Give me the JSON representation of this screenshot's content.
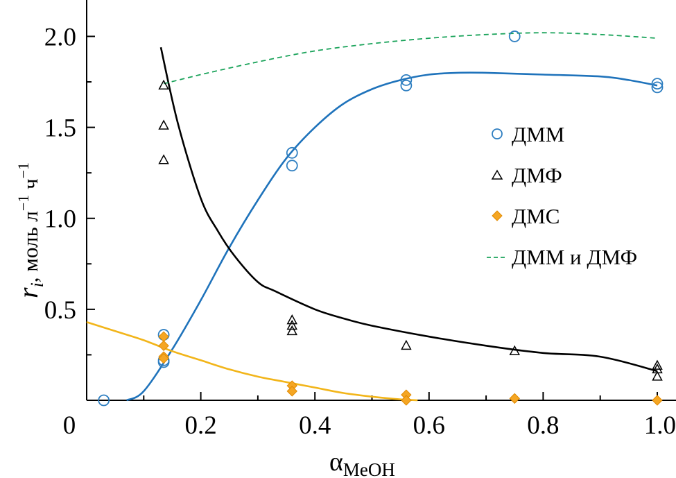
{
  "chart_data": {
    "type": "scatter",
    "xlabel": "α",
    "xlabel_sub": "MeOH",
    "ylabel": "r",
    "ylabel_sub": "i",
    "ylabel_rest": ", моль л",
    "ylabel_exp1": "−1",
    "ylabel_mid": " ч",
    "ylabel_exp2": "−1",
    "xlim": [
      0,
      1.0
    ],
    "ylim": [
      0,
      2.2
    ],
    "x_ticks": [
      0,
      0.2,
      0.4,
      0.6,
      0.8,
      1.0
    ],
    "x_tick_labels": [
      "0",
      "0.2",
      "0.4",
      "0.6",
      "0.8",
      "1.0"
    ],
    "y_ticks": [
      0.5,
      1.0,
      1.5,
      2.0
    ],
    "y_tick_labels": [
      "0.5",
      "1.0",
      "1.5",
      "2.0"
    ],
    "series": [
      {
        "name": "ДММ",
        "marker": "circle",
        "color": "#2f7fc1",
        "points": [
          [
            0.03,
            0.0
          ],
          [
            0.135,
            0.36
          ],
          [
            0.135,
            0.22
          ],
          [
            0.135,
            0.21
          ],
          [
            0.36,
            1.36
          ],
          [
            0.36,
            1.29
          ],
          [
            0.56,
            1.76
          ],
          [
            0.56,
            1.73
          ],
          [
            0.75,
            2.0
          ],
          [
            1.0,
            1.74
          ],
          [
            1.0,
            1.72
          ]
        ]
      },
      {
        "name": "ДМФ",
        "marker": "triangle",
        "color": "#000000",
        "points": [
          [
            0.135,
            1.73
          ],
          [
            0.135,
            1.51
          ],
          [
            0.135,
            1.32
          ],
          [
            0.36,
            0.44
          ],
          [
            0.36,
            0.41
          ],
          [
            0.36,
            0.38
          ],
          [
            0.56,
            0.3
          ],
          [
            0.75,
            0.27
          ],
          [
            1.0,
            0.19
          ],
          [
            1.0,
            0.17
          ],
          [
            1.0,
            0.13
          ]
        ]
      },
      {
        "name": "ДМС",
        "marker": "diamond",
        "color": "#f5a623",
        "points": [
          [
            0.135,
            0.35
          ],
          [
            0.135,
            0.3
          ],
          [
            0.135,
            0.24
          ],
          [
            0.135,
            0.23
          ],
          [
            0.36,
            0.08
          ],
          [
            0.36,
            0.05
          ],
          [
            0.56,
            0.03
          ],
          [
            0.56,
            0.0
          ],
          [
            0.75,
            0.01
          ],
          [
            1.0,
            0.0
          ]
        ]
      },
      {
        "name": "ДММ и ДМФ",
        "marker": "dashed-line",
        "color": "#1aa35a"
      }
    ],
    "fit_curves": [
      {
        "name": "ДММ fit",
        "color": "#1f73bb",
        "points": [
          [
            0.07,
            0.0
          ],
          [
            0.1,
            0.05
          ],
          [
            0.15,
            0.28
          ],
          [
            0.2,
            0.55
          ],
          [
            0.25,
            0.84
          ],
          [
            0.3,
            1.1
          ],
          [
            0.35,
            1.33
          ],
          [
            0.4,
            1.5
          ],
          [
            0.45,
            1.63
          ],
          [
            0.5,
            1.71
          ],
          [
            0.55,
            1.76
          ],
          [
            0.6,
            1.79
          ],
          [
            0.65,
            1.8
          ],
          [
            0.7,
            1.8
          ],
          [
            0.8,
            1.79
          ],
          [
            0.9,
            1.78
          ],
          [
            0.95,
            1.76
          ],
          [
            1.0,
            1.73
          ]
        ]
      },
      {
        "name": "ДМФ fit",
        "color": "#000000",
        "points": [
          [
            0.13,
            1.94
          ],
          [
            0.16,
            1.52
          ],
          [
            0.2,
            1.11
          ],
          [
            0.23,
            0.93
          ],
          [
            0.26,
            0.79
          ],
          [
            0.3,
            0.65
          ],
          [
            0.33,
            0.6
          ],
          [
            0.4,
            0.5
          ],
          [
            0.45,
            0.45
          ],
          [
            0.5,
            0.41
          ],
          [
            0.6,
            0.35
          ],
          [
            0.7,
            0.3
          ],
          [
            0.8,
            0.26
          ],
          [
            0.9,
            0.24
          ],
          [
            1.0,
            0.16
          ]
        ]
      },
      {
        "name": "ДМС fit",
        "color": "#f2b51a",
        "points": [
          [
            0.0,
            0.43
          ],
          [
            0.05,
            0.38
          ],
          [
            0.1,
            0.33
          ],
          [
            0.15,
            0.27
          ],
          [
            0.2,
            0.22
          ],
          [
            0.25,
            0.17
          ],
          [
            0.3,
            0.13
          ],
          [
            0.35,
            0.1
          ],
          [
            0.4,
            0.07
          ],
          [
            0.45,
            0.04
          ],
          [
            0.5,
            0.02
          ],
          [
            0.55,
            0.005
          ],
          [
            0.58,
            0.0
          ]
        ]
      },
      {
        "name": "ДММ и ДМФ fit",
        "color": "#1aa35a",
        "dashed": true,
        "points": [
          [
            0.135,
            1.74
          ],
          [
            0.2,
            1.79
          ],
          [
            0.3,
            1.86
          ],
          [
            0.4,
            1.92
          ],
          [
            0.5,
            1.96
          ],
          [
            0.6,
            1.99
          ],
          [
            0.7,
            2.01
          ],
          [
            0.8,
            2.02
          ],
          [
            0.9,
            2.01
          ],
          [
            1.0,
            1.99
          ]
        ]
      }
    ]
  }
}
